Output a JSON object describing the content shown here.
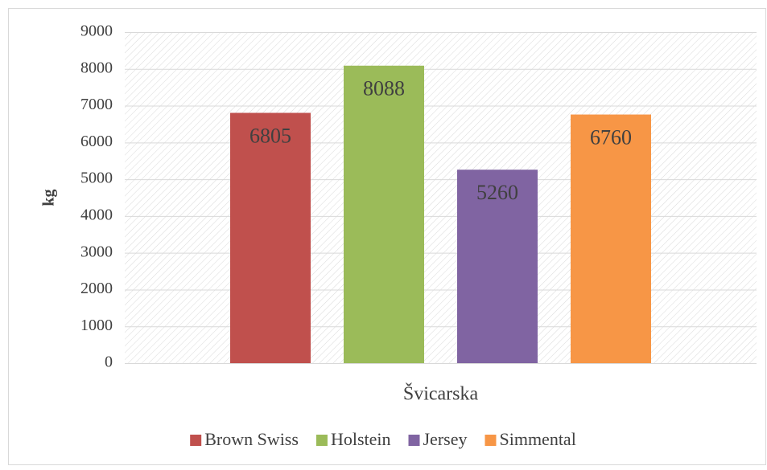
{
  "chart_data": {
    "type": "bar",
    "y_label": "kg",
    "categories": [
      "Švicarska"
    ],
    "series": [
      {
        "name": "Brown Swiss",
        "color": "#c0504d",
        "values": [
          6805
        ]
      },
      {
        "name": "Holstein",
        "color": "#9bbb59",
        "values": [
          8088
        ]
      },
      {
        "name": "Jersey",
        "color": "#8064a2",
        "values": [
          5260
        ]
      },
      {
        "name": "Simmental",
        "color": "#f79646",
        "values": [
          6760
        ]
      }
    ],
    "ylim": [
      0,
      9000
    ],
    "yticks": [
      0,
      1000,
      2000,
      3000,
      4000,
      5000,
      6000,
      7000,
      8000,
      9000
    ],
    "grid": true,
    "legend": "bottom"
  }
}
